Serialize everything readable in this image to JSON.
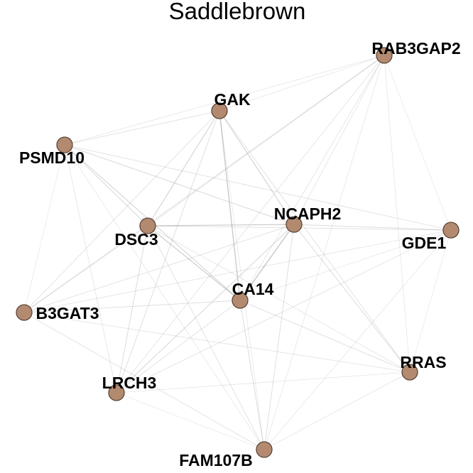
{
  "title": "Saddlebrown",
  "node_color": "#b38a70",
  "edge_color": "#9a9a9a",
  "nodes": [
    {
      "id": "RAB3GAP2",
      "label": "RAB3GAP2"
    },
    {
      "id": "GAK",
      "label": "GAK"
    },
    {
      "id": "PSMD10",
      "label": "PSMD10"
    },
    {
      "id": "NCAPH2",
      "label": "NCAPH2"
    },
    {
      "id": "DSC3",
      "label": "DSC3"
    },
    {
      "id": "GDE1",
      "label": "GDE1"
    },
    {
      "id": "CA14",
      "label": "CA14"
    },
    {
      "id": "B3GAT3",
      "label": "B3GAT3"
    },
    {
      "id": "RRAS",
      "label": "RRAS"
    },
    {
      "id": "LRCH3",
      "label": "LRCH3"
    },
    {
      "id": "FAM107B",
      "label": "FAM107B"
    }
  ],
  "edges": [
    {
      "source": "GAK",
      "target": "CA14",
      "weight": 0.75
    },
    {
      "source": "NCAPH2",
      "target": "CA14",
      "weight": 0.8
    },
    {
      "source": "DSC3",
      "target": "NCAPH2",
      "weight": 0.7
    },
    {
      "source": "DSC3",
      "target": "CA14",
      "weight": 0.65
    },
    {
      "source": "GAK",
      "target": "NCAPH2",
      "weight": 0.55
    },
    {
      "source": "GAK",
      "target": "DSC3",
      "weight": 0.55
    },
    {
      "source": "PSMD10",
      "target": "CA14",
      "weight": 0.5
    },
    {
      "source": "PSMD10",
      "target": "DSC3",
      "weight": 0.45
    },
    {
      "source": "PSMD10",
      "target": "NCAPH2",
      "weight": 0.45
    },
    {
      "source": "PSMD10",
      "target": "GAK",
      "weight": 0.3
    },
    {
      "source": "NCAPH2",
      "target": "GDE1",
      "weight": 0.4
    },
    {
      "source": "NCAPH2",
      "target": "LRCH3",
      "weight": 0.45
    },
    {
      "source": "NCAPH2",
      "target": "RRAS",
      "weight": 0.4
    },
    {
      "source": "NCAPH2",
      "target": "FAM107B",
      "weight": 0.35
    },
    {
      "source": "CA14",
      "target": "FAM107B",
      "weight": 0.4
    },
    {
      "source": "CA14",
      "target": "B3GAT3",
      "weight": 0.35
    },
    {
      "source": "CA14",
      "target": "RRAS",
      "weight": 0.35
    },
    {
      "source": "DSC3",
      "target": "LRCH3",
      "weight": 0.4
    },
    {
      "source": "DSC3",
      "target": "RAB3GAP2",
      "weight": 0.35
    },
    {
      "source": "DSC3",
      "target": "B3GAT3",
      "weight": 0.3
    },
    {
      "source": "DSC3",
      "target": "FAM107B",
      "weight": 0.3
    },
    {
      "source": "GAK",
      "target": "B3GAT3",
      "weight": 0.3
    },
    {
      "source": "GAK",
      "target": "LRCH3",
      "weight": 0.35
    },
    {
      "source": "GAK",
      "target": "RRAS",
      "weight": 0.3
    },
    {
      "source": "GAK",
      "target": "RAB3GAP2",
      "weight": 0.2
    },
    {
      "source": "PSMD10",
      "target": "GDE1",
      "weight": 0.3
    },
    {
      "source": "PSMD10",
      "target": "LRCH3",
      "weight": 0.25
    },
    {
      "source": "PSMD10",
      "target": "RAB3GAP2",
      "weight": 0.2
    },
    {
      "source": "PSMD10",
      "target": "B3GAT3",
      "weight": 0.15
    },
    {
      "source": "RAB3GAP2",
      "target": "CA14",
      "weight": 0.25
    },
    {
      "source": "RAB3GAP2",
      "target": "NCAPH2",
      "weight": 0.25
    },
    {
      "source": "RAB3GAP2",
      "target": "B3GAT3",
      "weight": 0.25
    },
    {
      "source": "RAB3GAP2",
      "target": "LRCH3",
      "weight": 0.25
    },
    {
      "source": "RAB3GAP2",
      "target": "GDE1",
      "weight": 0.15
    },
    {
      "source": "RAB3GAP2",
      "target": "RRAS",
      "weight": 0.2
    },
    {
      "source": "RAB3GAP2",
      "target": "FAM107B",
      "weight": 0.2
    },
    {
      "source": "GDE1",
      "target": "B3GAT3",
      "weight": 0.25
    },
    {
      "source": "GDE1",
      "target": "LRCH3",
      "weight": 0.25
    },
    {
      "source": "GDE1",
      "target": "RRAS",
      "weight": 0.15
    },
    {
      "source": "GDE1",
      "target": "FAM107B",
      "weight": 0.2
    },
    {
      "source": "GDE1",
      "target": "DSC3",
      "weight": 0.3
    },
    {
      "source": "GDE1",
      "target": "CA14",
      "weight": 0.2
    },
    {
      "source": "B3GAT3",
      "target": "RRAS",
      "weight": 0.25
    },
    {
      "source": "B3GAT3",
      "target": "FAM107B",
      "weight": 0.3
    },
    {
      "source": "B3GAT3",
      "target": "NCAPH2",
      "weight": 0.3
    },
    {
      "source": "LRCH3",
      "target": "RRAS",
      "weight": 0.2
    },
    {
      "source": "LRCH3",
      "target": "FAM107B",
      "weight": 0.15
    },
    {
      "source": "LRCH3",
      "target": "CA14",
      "weight": 0.3
    },
    {
      "source": "RRAS",
      "target": "FAM107B",
      "weight": 0.25
    },
    {
      "source": "RRAS",
      "target": "DSC3",
      "weight": 0.25
    },
    {
      "source": "FAM107B",
      "target": "GAK",
      "weight": 0.2
    },
    {
      "source": "FAM107B",
      "target": "PSMD10",
      "weight": 0.2
    }
  ]
}
